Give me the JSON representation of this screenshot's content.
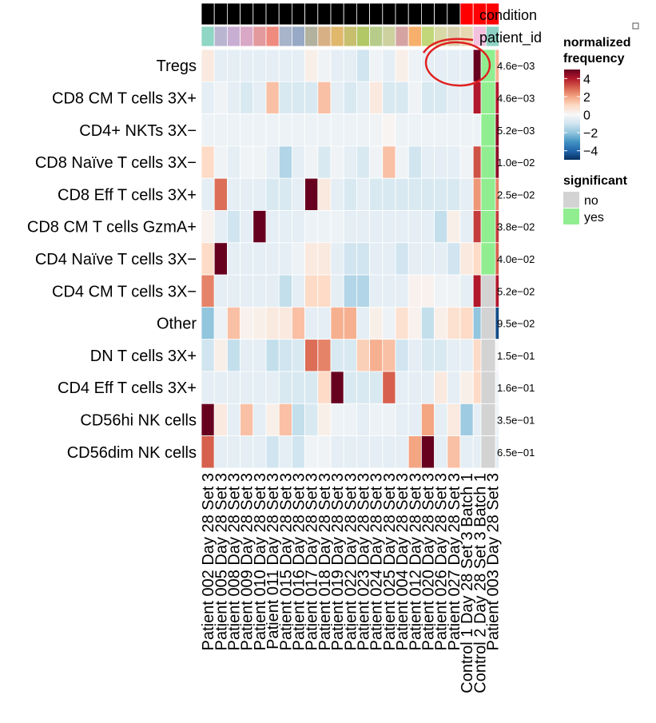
{
  "chart_data": {
    "type": "heatmap",
    "color_scale": {
      "low": "#053061",
      "mid": "#f7f7f7",
      "high": "#67001f",
      "stops": [
        "#053061",
        "#2166ac",
        "#4393c3",
        "#92c5de",
        "#d1e5f0",
        "#f7f7f7",
        "#fddbc7",
        "#f4a582",
        "#d6604d",
        "#b2182b",
        "#67001f"
      ],
      "domain": [
        -5,
        5
      ]
    },
    "rows": [
      "Tregs",
      "CD8 CM T cells 3X+",
      "CD4+ NKTs 3X−",
      "CD8 Naïve T cells 3X−",
      "CD8 Eff T cells 3X+",
      "CD8 CM T cells GzmA+",
      "CD4 Naïve T cells 3X−",
      "CD4 CM T cells 3X−",
      "Other",
      "DN T cells 3X+",
      "CD4 Eff T cells 3X+",
      "CD56hi NK cells",
      "CD56dim NK cells"
    ],
    "columns": [
      "Patient 002 Day 28 Set 3",
      "Patient 005 Day 28 Set 3",
      "Patient 008 Day 28 Set 3",
      "Patient 009 Day 28 Set 3",
      "Patient 010 Day 28 Set 3",
      "Patient 011 Day 28 Set 3",
      "Patient 015 Day 28 Set 3",
      "Patient 016 Day 28 Set 3",
      "Patient 017 Day 28 Set 3",
      "Patient 018 Day 28 Set 3",
      "Patient 019 Day 28 Set 3",
      "Patient 022 Day 28 Set 3",
      "Patient 023 Day 28 Set 3",
      "Patient 024 Day 28 Set 3",
      "Patient 025 Day 28 Set 3",
      "Patient 004 Day 28 Set 3",
      "Patient 012 Day 28 Set 3",
      "Patient 020 Day 28 Set 3",
      "Patient 026 Day 28 Set 3",
      "Patient 027 Day 28 Set 3",
      "Control 1 Day 28 Set 3 Batch 1",
      "Control 2 Day 28 Set 3 Batch 1",
      "Patient 003 Day 28 Set 3"
    ],
    "values": [
      [
        0.5,
        -0.5,
        -0.5,
        -0.5,
        -0.5,
        -0.5,
        -0.5,
        -0.5,
        0.3,
        -0.2,
        -0.5,
        -0.5,
        -1.0,
        -0.2,
        -0.5,
        0.3,
        -0.3,
        -0.5,
        -0.5,
        -0.5,
        -0.5,
        5.0,
        1.8
      ],
      [
        -0.5,
        -0.2,
        -0.5,
        -0.8,
        -0.5,
        1.5,
        -0.8,
        -0.8,
        -0.8,
        1.5,
        -0.5,
        -0.8,
        -0.5,
        0.5,
        -0.8,
        -0.8,
        -0.2,
        -0.8,
        -0.8,
        -0.5,
        -0.5,
        4.0,
        4.0
      ],
      [
        -0.3,
        -0.3,
        -0.3,
        -0.3,
        -0.3,
        -0.3,
        -0.3,
        -0.3,
        -0.3,
        -0.3,
        -0.3,
        -0.3,
        -0.3,
        -0.2,
        0.1,
        -0.3,
        -0.3,
        -0.3,
        -0.3,
        -0.3,
        -0.3,
        -0.3,
        4.5
      ],
      [
        1.0,
        -0.2,
        -0.5,
        -0.2,
        -0.2,
        -0.5,
        -1.5,
        -0.5,
        -0.2,
        -0.8,
        -0.2,
        -0.5,
        -0.8,
        -0.2,
        1.5,
        -0.2,
        -1.0,
        -0.5,
        -0.5,
        -0.5,
        -0.2,
        3.2,
        4.5
      ],
      [
        -0.5,
        2.8,
        -0.5,
        -0.5,
        -0.5,
        -0.8,
        -0.8,
        -0.5,
        5.0,
        0.5,
        -0.5,
        -0.8,
        -0.5,
        -0.8,
        -0.8,
        -0.8,
        -0.8,
        -0.8,
        -0.8,
        -0.8,
        -0.5,
        2.2,
        2.5
      ],
      [
        0.2,
        -0.5,
        -1.0,
        -0.5,
        5.0,
        -0.5,
        -0.5,
        -0.5,
        -0.3,
        -0.3,
        -0.3,
        -0.5,
        -0.5,
        -0.5,
        -0.5,
        -0.5,
        -0.5,
        -0.5,
        -1.2,
        0.3,
        -0.5,
        3.5,
        3.5
      ],
      [
        1.0,
        5.0,
        -0.5,
        -0.5,
        -0.5,
        -0.5,
        -0.5,
        -0.3,
        0.5,
        0.5,
        -0.5,
        -1.0,
        -1.0,
        -0.5,
        -0.5,
        -1.0,
        -0.5,
        -0.5,
        -0.5,
        -1.0,
        0.5,
        1.0,
        3.0
      ],
      [
        2.5,
        -0.5,
        -0.5,
        -0.5,
        -0.5,
        -0.5,
        -1.2,
        -0.5,
        1.0,
        1.0,
        -0.5,
        -1.5,
        -1.5,
        -0.5,
        -0.5,
        -0.5,
        0.2,
        0.2,
        -0.2,
        -0.2,
        -0.5,
        4.0,
        4.0
      ],
      [
        -2.0,
        -0.3,
        1.5,
        0.2,
        0.3,
        0.5,
        0.5,
        1.5,
        -0.5,
        -0.5,
        1.8,
        1.8,
        -0.5,
        0.3,
        -0.3,
        0.8,
        0.2,
        -1.2,
        0.3,
        0.8,
        1.0,
        -2.0,
        -4.5
      ],
      [
        -1.0,
        0.3,
        -1.2,
        -0.5,
        -0.5,
        -1.2,
        -1.0,
        -0.8,
        2.8,
        2.5,
        -0.8,
        -0.8,
        1.2,
        1.8,
        1.5,
        -1.0,
        -0.5,
        -0.8,
        -0.8,
        -0.5,
        -0.5,
        1.0,
        0.0
      ],
      [
        -0.5,
        -0.5,
        -0.5,
        -0.5,
        -0.5,
        -0.5,
        -0.8,
        -0.8,
        -0.8,
        1.0,
        5.0,
        -0.8,
        -0.8,
        -0.8,
        3.0,
        -0.5,
        -0.5,
        -0.5,
        0.5,
        -0.5,
        0.3,
        1.0,
        -0.2
      ],
      [
        5.0,
        0.5,
        -0.5,
        1.5,
        -0.5,
        0.3,
        1.5,
        -1.2,
        -0.8,
        0.3,
        -0.3,
        -0.3,
        -0.5,
        -0.3,
        -0.3,
        -0.5,
        -0.5,
        2.0,
        -0.5,
        0.5,
        -1.8,
        -0.5,
        -0.3
      ],
      [
        3.0,
        -0.5,
        -0.5,
        -0.5,
        -0.5,
        -1.0,
        -0.5,
        -1.0,
        -0.2,
        -0.2,
        -0.5,
        -0.5,
        -0.5,
        -0.5,
        -0.5,
        -0.5,
        2.0,
        5.0,
        -0.5,
        1.5,
        -0.5,
        -0.5,
        -0.5
      ]
    ],
    "annotations": {
      "condition": {
        "label": "condition",
        "colors": [
          "#000000",
          "#000000",
          "#000000",
          "#000000",
          "#000000",
          "#000000",
          "#000000",
          "#000000",
          "#000000",
          "#000000",
          "#000000",
          "#000000",
          "#000000",
          "#000000",
          "#000000",
          "#000000",
          "#000000",
          "#000000",
          "#000000",
          "#000000",
          "#ff0000",
          "#ff0000",
          "#ff0000"
        ]
      },
      "patient_id": {
        "label": "patient_id",
        "colors": [
          "#8fd6c4",
          "#b9b5d1",
          "#c9aed3",
          "#d8a8c6",
          "#e39a9d",
          "#ef8a7f",
          "#a8b4c9",
          "#97a9c4",
          "#b3b29f",
          "#d7b185",
          "#e0b86c",
          "#c7bf6e",
          "#b2c766",
          "#b7cc8a",
          "#ccd19f",
          "#d6a3a3",
          "#f6b06b",
          "#c1d77a",
          "#d9d9a8",
          "#d9d0ad",
          "#e8d8b2",
          "#f3c0de",
          "#8ed1c4"
        ]
      }
    },
    "pvalues": [
      "4.6e−03",
      "4.6e−03",
      "5.2e−03",
      "1.0e−02",
      "2.5e−02",
      "3.8e−02",
      "4.0e−02",
      "5.2e−02",
      "9.5e−02",
      "1.5e−01",
      "1.6e−01",
      "3.5e−01",
      "6.5e−01"
    ],
    "significant": [
      "yes",
      "yes",
      "yes",
      "yes",
      "yes",
      "yes",
      "yes",
      "no",
      "no",
      "no",
      "no",
      "no",
      "no"
    ],
    "significant_colors": {
      "no": "#d3d3d3",
      "yes": "#90ee90"
    },
    "legend": {
      "heat_title": [
        "normalized",
        "frequency"
      ],
      "heat_ticks": [
        "4",
        "2",
        "0",
        "−2",
        "−4"
      ],
      "heat_tick_values": [
        4,
        2,
        0,
        -2,
        -4
      ],
      "sig_title": "significant",
      "sig_items": [
        "no",
        "yes"
      ]
    },
    "highlight": {
      "shape": "hand-drawn ellipse",
      "color": "#e02020",
      "around": "Tregs, Control 1 to Patient 003"
    }
  }
}
